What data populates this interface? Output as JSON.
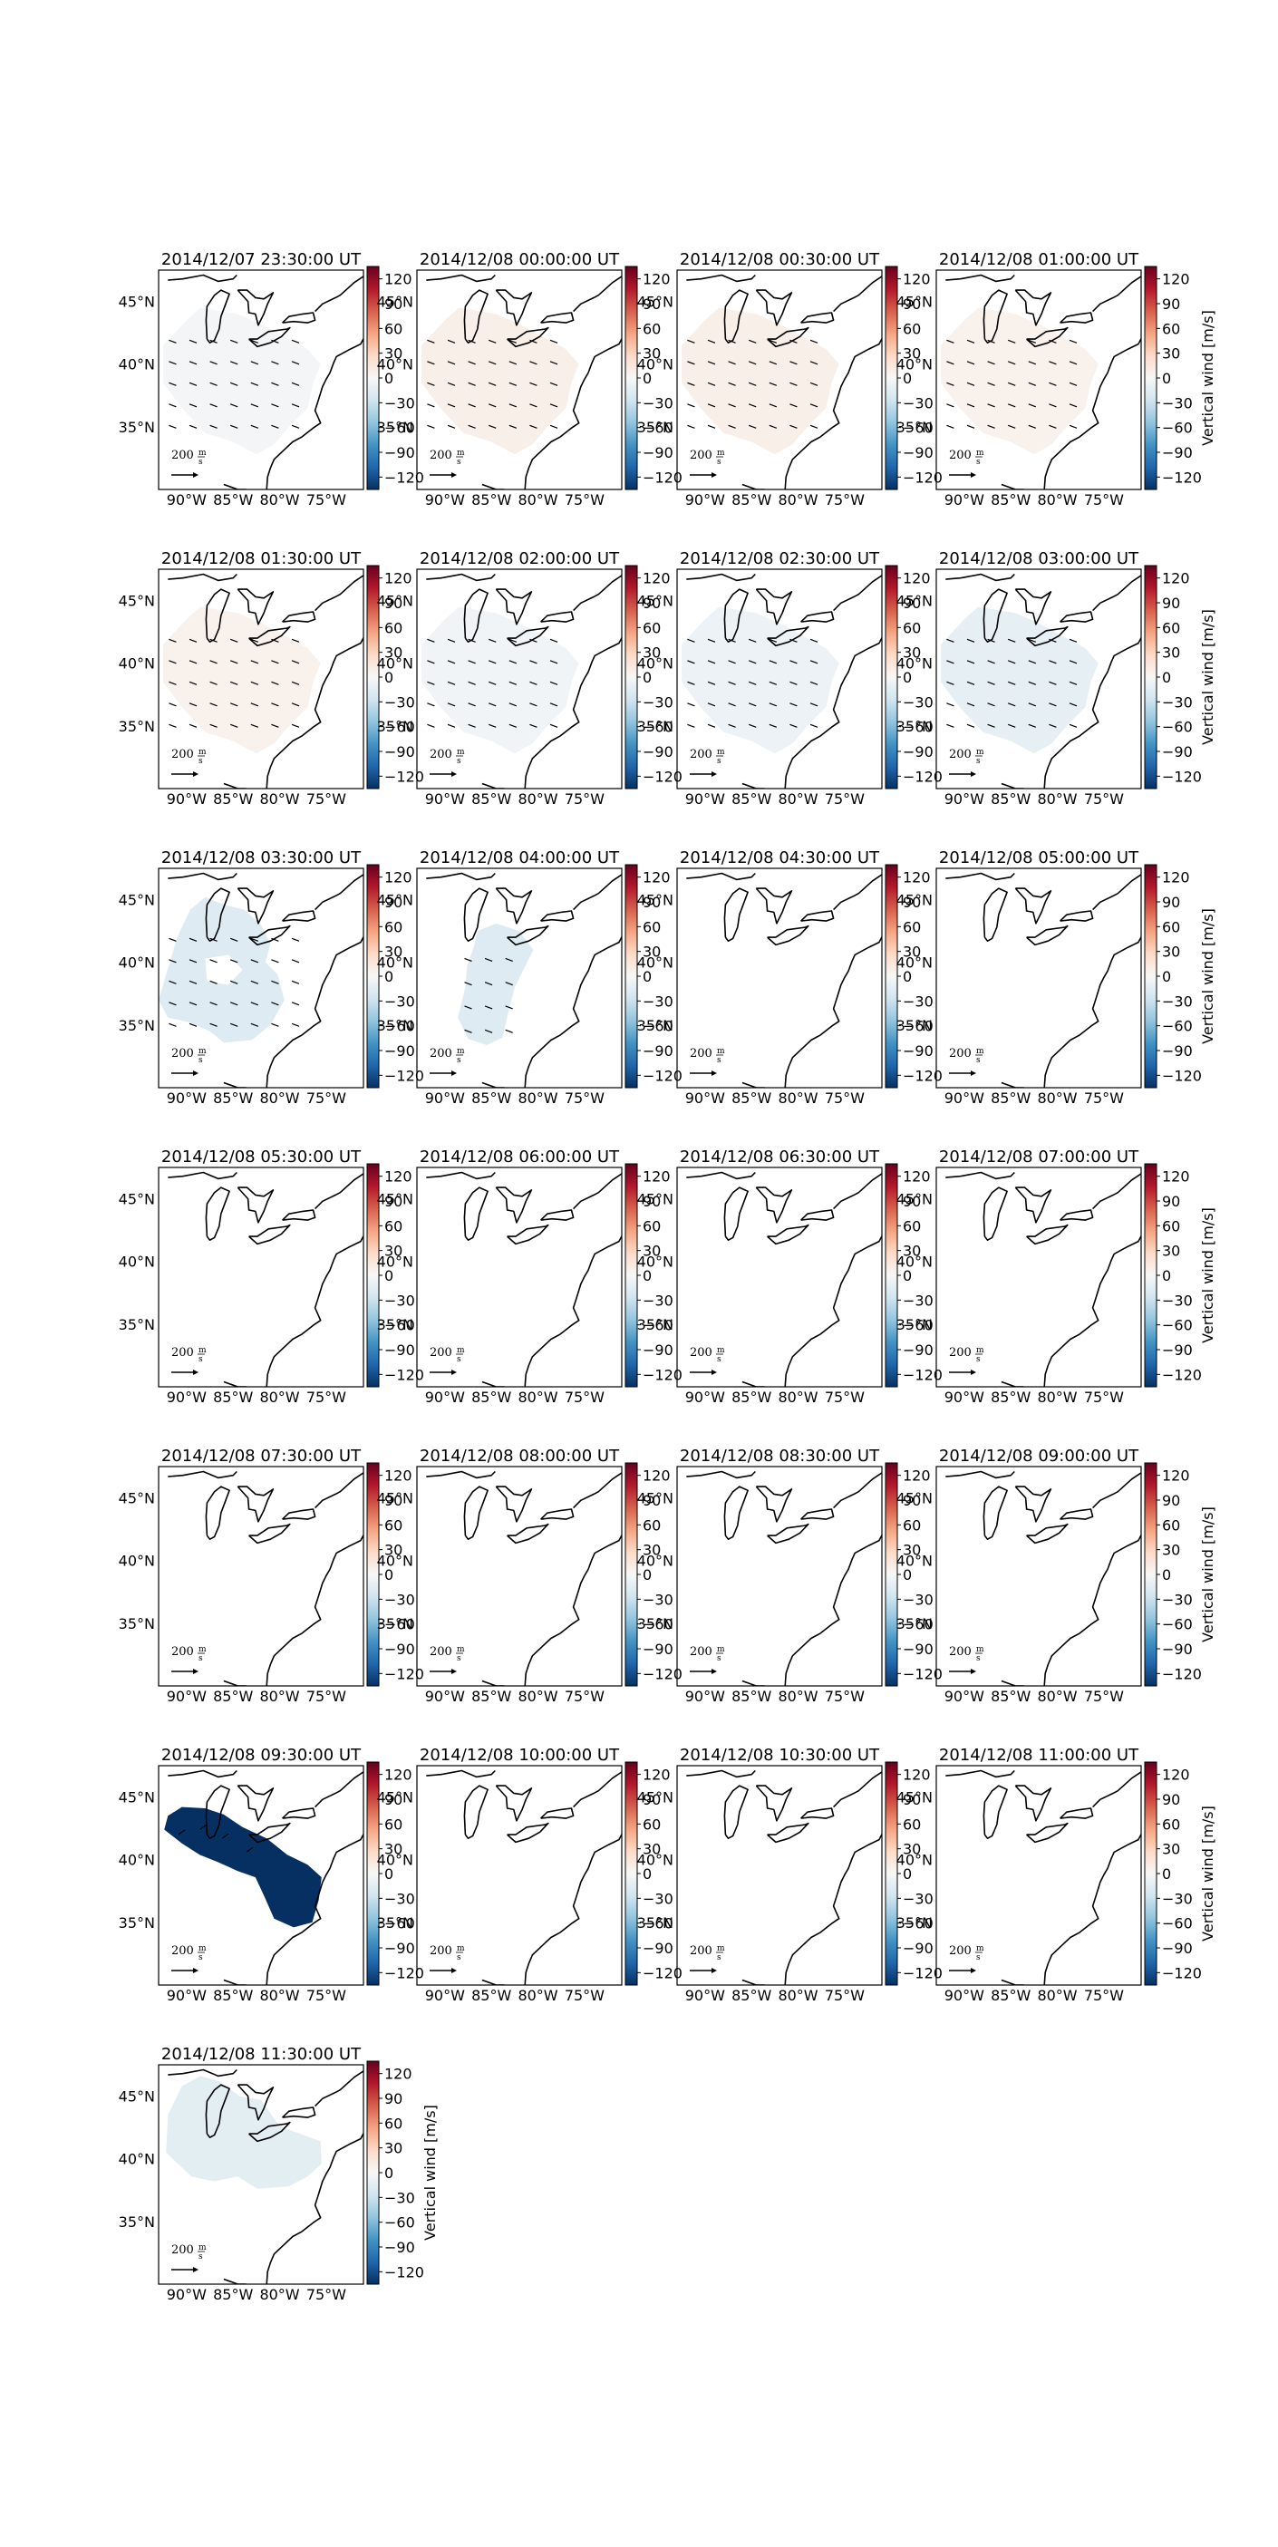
{
  "figure": {
    "colorbar_label": "Vertical wind [m/s]",
    "colorbar_ticks": [
      120,
      90,
      60,
      30,
      0,
      -30,
      -60,
      -90,
      -120
    ],
    "colorbar_range": [
      -135,
      135
    ],
    "colormap": [
      "#67001f",
      "#b2182b",
      "#d6604d",
      "#f4a582",
      "#fddbc7",
      "#f7f7f7",
      "#d1e5f0",
      "#92c5de",
      "#4393c3",
      "#2166ac",
      "#053061"
    ],
    "lat_labels": [
      "45°N",
      "40°N",
      "35°N"
    ],
    "lon_labels": [
      "90°W",
      "85°W",
      "80°W",
      "75°W"
    ],
    "quiver_key_value": "200",
    "quiver_key_unit_num": "m",
    "quiver_key_unit_den": "s"
  },
  "chart_data": {
    "type": "heatmap",
    "description_of_values": "approximate uniform vertical wind shown by fill color of the mapped region per panel",
    "panels": [
      {
        "title": "2014/12/07 23:30:00 UT",
        "value": -3,
        "region": "full",
        "arrows": "dense",
        "colorbar_label_shown": false
      },
      {
        "title": "2014/12/08 00:00:00 UT",
        "value": 8,
        "region": "full",
        "arrows": "dense",
        "colorbar_label_shown": false
      },
      {
        "title": "2014/12/08 00:30:00 UT",
        "value": 8,
        "region": "full",
        "arrows": "dense",
        "colorbar_label_shown": false
      },
      {
        "title": "2014/12/08 01:00:00 UT",
        "value": 6,
        "region": "full",
        "arrows": "dense",
        "colorbar_label_shown": true
      },
      {
        "title": "2014/12/08 01:30:00 UT",
        "value": 6,
        "region": "full",
        "arrows": "dense",
        "colorbar_label_shown": false
      },
      {
        "title": "2014/12/08 02:00:00 UT",
        "value": -4,
        "region": "full",
        "arrows": "dense",
        "colorbar_label_shown": false
      },
      {
        "title": "2014/12/08 02:30:00 UT",
        "value": -8,
        "region": "full",
        "arrows": "dense",
        "colorbar_label_shown": false
      },
      {
        "title": "2014/12/08 03:00:00 UT",
        "value": -12,
        "region": "full",
        "arrows": "dense",
        "colorbar_label_shown": true
      },
      {
        "title": "2014/12/08 03:30:00 UT",
        "value": -18,
        "region": "west-lobes",
        "arrows": "dense",
        "colorbar_label_shown": false
      },
      {
        "title": "2014/12/08 04:00:00 UT",
        "value": -18,
        "region": "narrow",
        "arrows": "sparse",
        "colorbar_label_shown": false
      },
      {
        "title": "2014/12/08 04:30:00 UT",
        "value": null,
        "region": "none",
        "arrows": "none",
        "colorbar_label_shown": false
      },
      {
        "title": "2014/12/08 05:00:00 UT",
        "value": null,
        "region": "none",
        "arrows": "none",
        "colorbar_label_shown": true
      },
      {
        "title": "2014/12/08 05:30:00 UT",
        "value": null,
        "region": "none",
        "arrows": "none",
        "colorbar_label_shown": false
      },
      {
        "title": "2014/12/08 06:00:00 UT",
        "value": null,
        "region": "none",
        "arrows": "none",
        "colorbar_label_shown": false
      },
      {
        "title": "2014/12/08 06:30:00 UT",
        "value": null,
        "region": "none",
        "arrows": "none",
        "colorbar_label_shown": false
      },
      {
        "title": "2014/12/08 07:00:00 UT",
        "value": null,
        "region": "none",
        "arrows": "none",
        "colorbar_label_shown": true
      },
      {
        "title": "2014/12/08 07:30:00 UT",
        "value": null,
        "region": "none",
        "arrows": "none",
        "colorbar_label_shown": false
      },
      {
        "title": "2014/12/08 08:00:00 UT",
        "value": null,
        "region": "none",
        "arrows": "none",
        "colorbar_label_shown": false
      },
      {
        "title": "2014/12/08 08:30:00 UT",
        "value": null,
        "region": "none",
        "arrows": "none",
        "colorbar_label_shown": false
      },
      {
        "title": "2014/12/08 09:00:00 UT",
        "value": null,
        "region": "none",
        "arrows": "none",
        "colorbar_label_shown": true
      },
      {
        "title": "2014/12/08 09:30:00 UT",
        "value": -135,
        "region": "band",
        "arrows": "few",
        "colorbar_label_shown": false
      },
      {
        "title": "2014/12/08 10:00:00 UT",
        "value": null,
        "region": "none",
        "arrows": "none",
        "colorbar_label_shown": false
      },
      {
        "title": "2014/12/08 10:30:00 UT",
        "value": null,
        "region": "none",
        "arrows": "none",
        "colorbar_label_shown": false
      },
      {
        "title": "2014/12/08 11:00:00 UT",
        "value": null,
        "region": "none",
        "arrows": "none",
        "colorbar_label_shown": true
      },
      {
        "title": "2014/12/08 11:30:00 UT",
        "value": -14,
        "region": "north",
        "arrows": "none",
        "colorbar_label_shown": true
      }
    ]
  }
}
